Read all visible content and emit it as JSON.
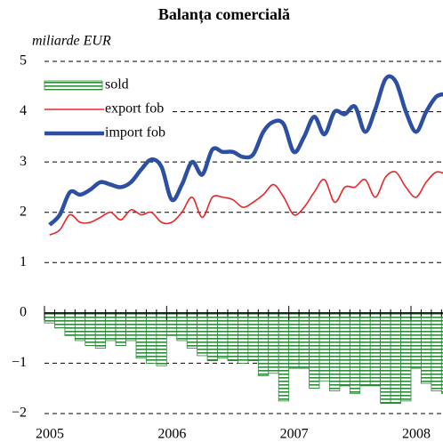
{
  "chart_data": {
    "type": "combo",
    "title": "Balanța comercială",
    "y_label": "miliarde EUR",
    "categories": [
      "2005",
      null,
      null,
      null,
      null,
      null,
      null,
      null,
      null,
      null,
      null,
      null,
      "2006",
      null,
      null,
      null,
      null,
      null,
      null,
      null,
      null,
      null,
      null,
      null,
      "2007",
      null,
      null,
      null,
      null,
      null,
      null,
      null,
      null,
      null,
      null,
      null,
      "2008",
      null,
      null,
      null
    ],
    "series": [
      {
        "name": "sold",
        "kind": "bar",
        "color": "#2e8b3a",
        "values": [
          -0.2,
          -0.3,
          -0.45,
          -0.55,
          -0.65,
          -0.7,
          -0.55,
          -0.65,
          -0.55,
          -0.9,
          -1.0,
          -1.05,
          -0.45,
          -0.55,
          -0.7,
          -0.85,
          -0.95,
          -0.9,
          -0.95,
          -1.0,
          -0.95,
          -1.25,
          -1.2,
          -1.75,
          -1.1,
          -1.1,
          -1.5,
          -1.35,
          -1.55,
          -1.45,
          -1.6,
          -1.45,
          -1.45,
          -1.8,
          -1.8,
          -1.75,
          -1.1,
          -1.4,
          -1.55,
          -1.6
        ]
      },
      {
        "name": "export fob",
        "kind": "line",
        "color": "#e8262a",
        "values": [
          1.55,
          1.65,
          1.95,
          1.8,
          1.8,
          1.9,
          2.0,
          1.85,
          2.05,
          1.95,
          2.0,
          1.8,
          1.8,
          2.0,
          2.3,
          1.9,
          2.3,
          2.3,
          2.25,
          2.1,
          2.2,
          2.35,
          2.55,
          2.3,
          1.95,
          2.1,
          2.4,
          2.65,
          2.2,
          2.5,
          2.5,
          2.65,
          2.3,
          2.7,
          2.8,
          2.5,
          2.3,
          2.6,
          2.8,
          2.75
        ]
      },
      {
        "name": "import fob",
        "kind": "line",
        "color": "#2d4fa3",
        "values": [
          1.75,
          1.95,
          2.4,
          2.35,
          2.45,
          2.6,
          2.55,
          2.5,
          2.6,
          2.85,
          3.05,
          2.9,
          2.25,
          2.55,
          3.0,
          2.75,
          3.25,
          3.2,
          3.2,
          3.1,
          3.15,
          3.6,
          3.8,
          3.75,
          3.2,
          3.5,
          3.9,
          3.55,
          4.0,
          3.95,
          4.1,
          3.6,
          4.05,
          4.65,
          4.6,
          4.0,
          3.6,
          4.0,
          4.3,
          4.35
        ]
      }
    ],
    "ylim": [
      -2,
      5
    ],
    "yticks": [
      {
        "value": -2,
        "label": "−2"
      },
      {
        "value": -1,
        "label": "−1"
      },
      0,
      1,
      2,
      3,
      4,
      5
    ],
    "grid": true
  }
}
